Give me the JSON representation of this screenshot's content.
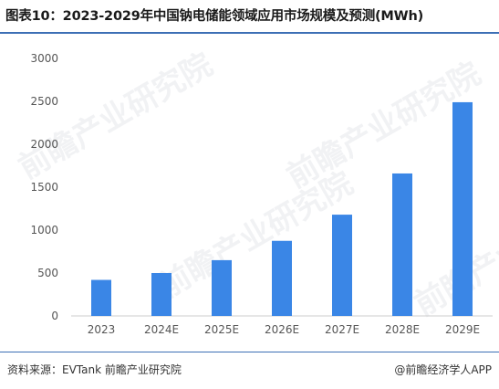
{
  "header": {
    "title": "图表10：2023-2029年中国钠电储能领域应用市场规模及预测(MWh)"
  },
  "footer": {
    "source": "资料来源：EVTank 前瞻产业研究院",
    "brand": "@前瞻经济学人APP"
  },
  "watermarks": [
    "前瞻产业研究院",
    "前瞻产业研究院",
    "前瞻产业研究院",
    "前瞻产业研究院"
  ],
  "colors": {
    "bar": "#3a86e6",
    "axis": "#cccccc",
    "tick_text": "#555555",
    "rule": "#3d6fb5"
  },
  "chart_data": {
    "type": "bar",
    "categories": [
      "2023",
      "2024E",
      "2025E",
      "2026E",
      "2027E",
      "2028E",
      "2029E"
    ],
    "values": [
      420,
      500,
      650,
      875,
      1180,
      1660,
      2490
    ],
    "ylim": [
      0,
      3000
    ],
    "yticks": [
      0,
      500,
      1000,
      1500,
      2000,
      2500,
      3000
    ],
    "grid": false
  }
}
